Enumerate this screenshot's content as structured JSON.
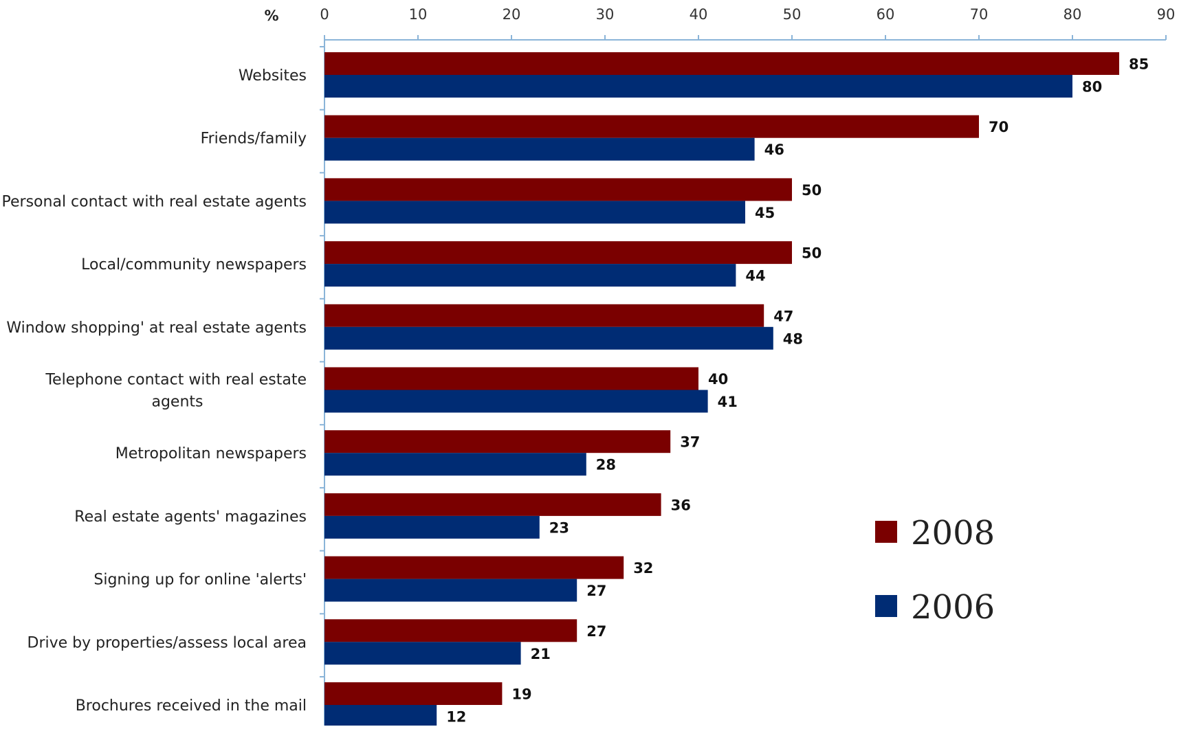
{
  "chart_data": {
    "type": "bar",
    "orientation": "horizontal",
    "axis_unit_label": "%",
    "xlim": [
      0,
      90
    ],
    "x_ticks": [
      0,
      10,
      20,
      30,
      40,
      50,
      60,
      70,
      80,
      90
    ],
    "x_tick_labels": [
      "0",
      "10",
      "20",
      "30",
      "40",
      "50",
      "60",
      "70",
      "80",
      "90"
    ],
    "grid": false,
    "axis_position": "top",
    "legend_position": "right",
    "categories": [
      "Websites",
      "Friends/family",
      "Personal contact with real estate agents",
      "Local/community newspapers",
      "Window shopping' at real estate agents",
      "Telephone contact with real estate agents",
      "Metropolitan newspapers",
      "Real estate agents' magazines",
      "Signing up for online 'alerts'",
      "Drive by properties/assess local area",
      "Brochures received in the mail"
    ],
    "category_label_lines": [
      [
        "Websites"
      ],
      [
        "Friends/family"
      ],
      [
        "Personal contact with real estate agents"
      ],
      [
        "Local/community newspapers"
      ],
      [
        "Window shopping' at real estate agents"
      ],
      [
        "Telephone contact with real estate",
        "agents"
      ],
      [
        "Metropolitan newspapers"
      ],
      [
        "Real estate agents' magazines"
      ],
      [
        "Signing up for online 'alerts'"
      ],
      [
        "Drive by properties/assess local area"
      ],
      [
        "Brochures received in the mail"
      ]
    ],
    "series": [
      {
        "name": "2008",
        "color": "#7a0000",
        "values": [
          85,
          70,
          50,
          50,
          47,
          40,
          37,
          36,
          32,
          27,
          19
        ]
      },
      {
        "name": "2006",
        "color": "#002c74",
        "values": [
          80,
          46,
          45,
          44,
          48,
          41,
          28,
          23,
          27,
          21,
          12
        ]
      }
    ],
    "axis_color": "#8ab4d8"
  }
}
